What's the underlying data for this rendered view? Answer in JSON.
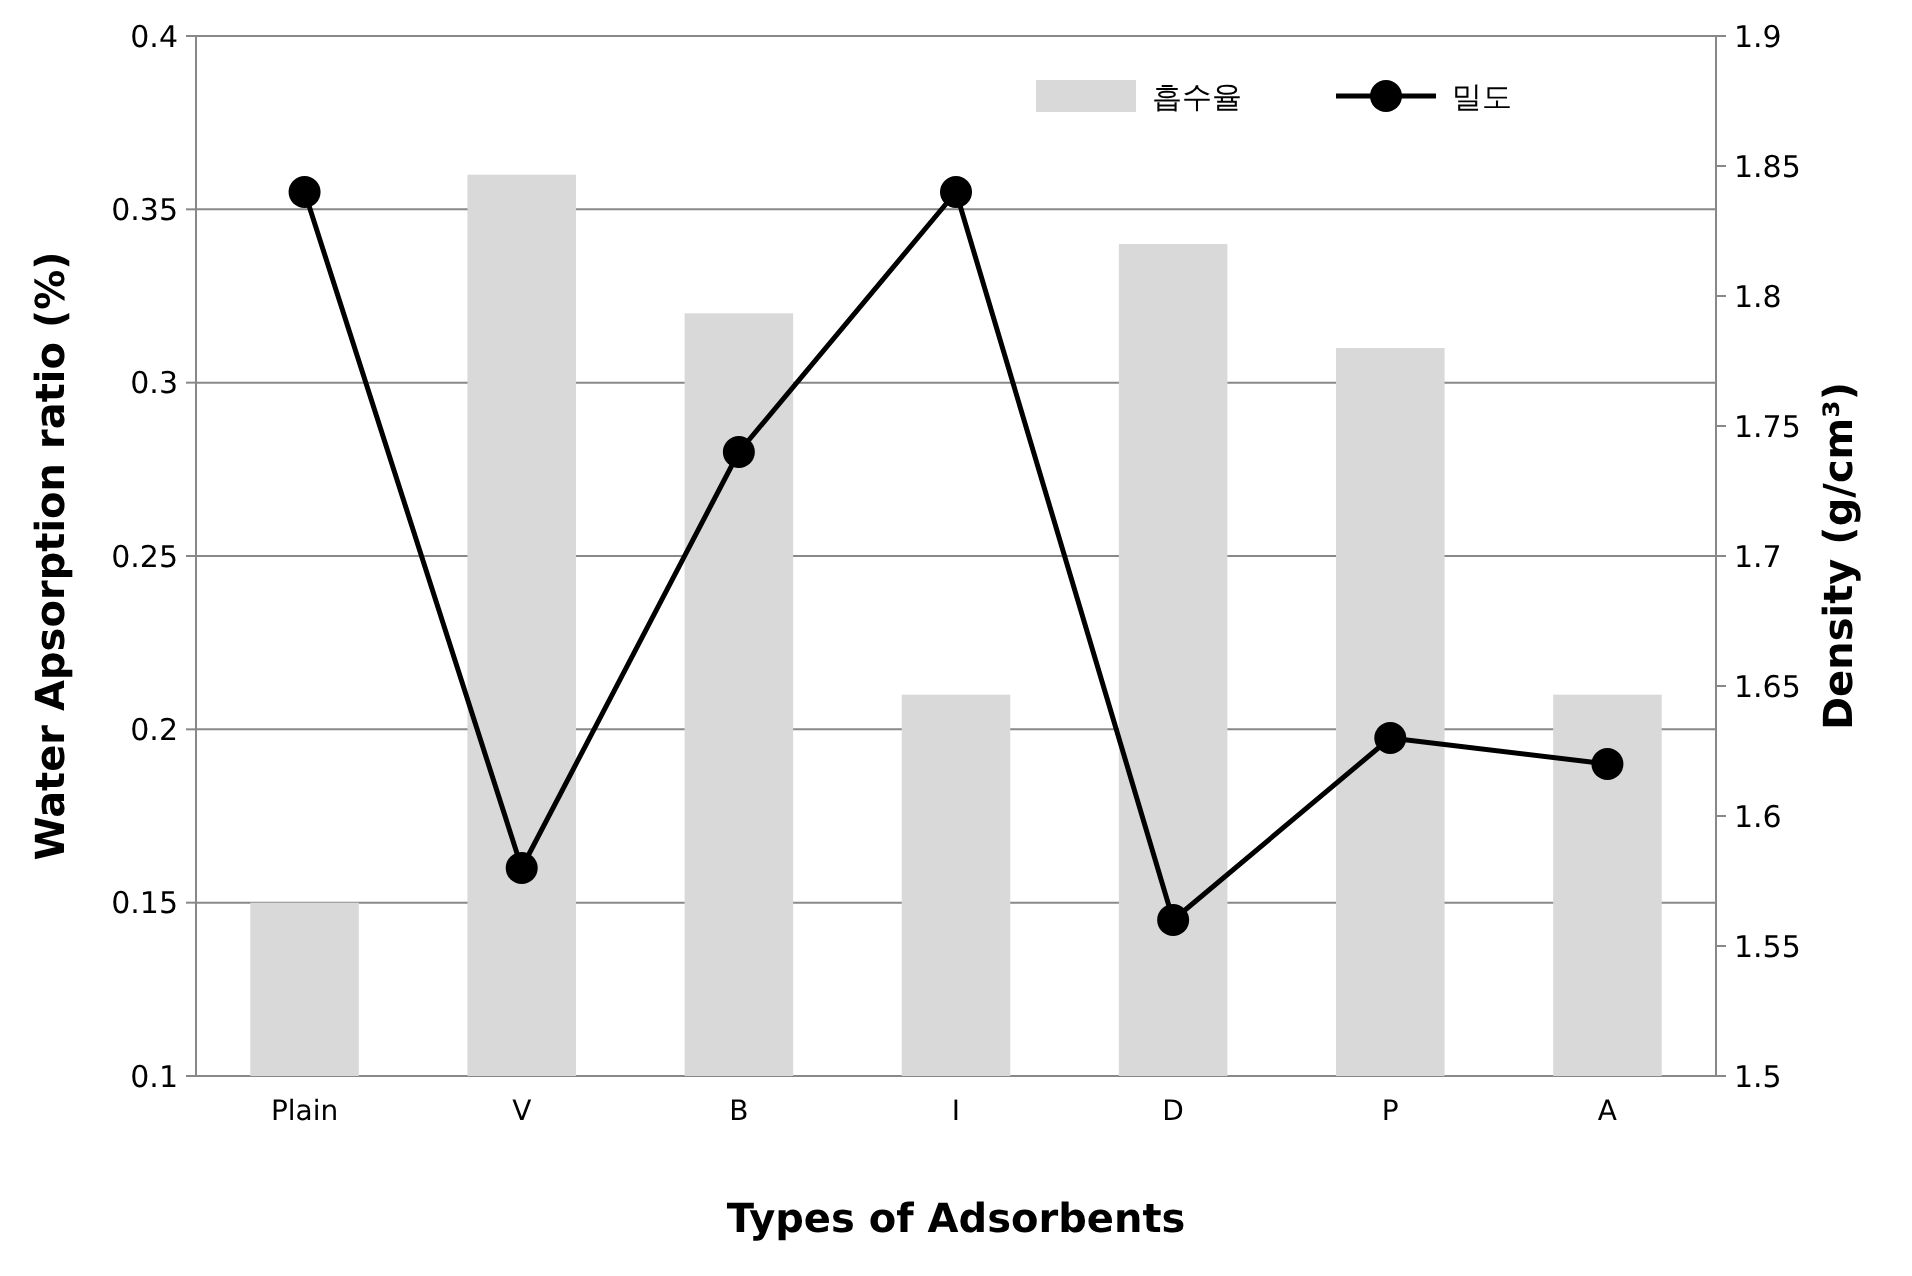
{
  "chart_data": {
    "type": "bar",
    "xlabel": "Types of Adsorbents",
    "ylabel": "Water Apsorption ratio (%)",
    "y2label": "Density (g/cm³)",
    "categories": [
      "Plain",
      "V",
      "B",
      "I",
      "D",
      "P",
      "A"
    ],
    "series": [
      {
        "name": "흡수율",
        "color": "#d9d9d9",
        "values": [
          0.15,
          0.36,
          0.32,
          0.21,
          0.34,
          0.31,
          0.21
        ]
      },
      {
        "name": "밀도",
        "type": "line",
        "axis": "y2",
        "color": "#000000",
        "values": [
          1.84,
          1.58,
          1.74,
          1.84,
          1.56,
          1.63,
          1.62
        ]
      }
    ],
    "ylim": [
      0.1,
      0.4
    ],
    "yticks": [
      0.1,
      0.15,
      0.2,
      0.25,
      0.3,
      0.35,
      0.4
    ],
    "y2lim": [
      1.5,
      1.9
    ],
    "y2ticks": [
      1.5,
      1.55,
      1.6,
      1.65,
      1.7,
      1.75,
      1.8,
      1.85,
      1.9
    ],
    "grid": "y",
    "legend": "top right",
    "marker": "circle",
    "line_style": "solid"
  }
}
